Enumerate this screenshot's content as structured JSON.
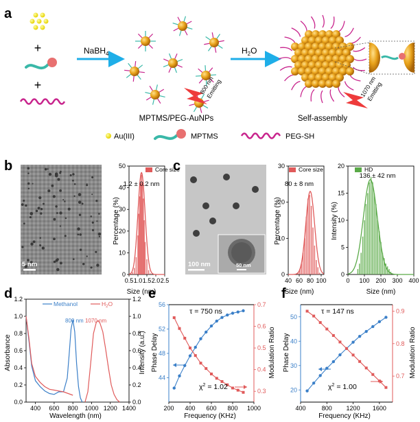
{
  "panels": {
    "a": {
      "label": "a",
      "reagent_label": "NaBH",
      "reagent_sub": "4",
      "water_label": "H",
      "water_sub": "2",
      "water_tail": "O",
      "np_caption": "MPTMS/PEG-AuNPs",
      "assembly_caption": "Self-assembly",
      "emit_800_line1": "800 nm",
      "emit_800_line2": "Emitting",
      "emit_1070_line1": "1070 nm",
      "emit_1070_line2": "Emitting",
      "plus": "+",
      "legend": [
        "Au(III)",
        "MPTMS",
        "PEG-SH"
      ]
    },
    "b": {
      "label": "b",
      "scale_bar": "5 nm",
      "hist": {
        "legend": "Core size",
        "annotation": "1.2 ± 0.2 nm",
        "xlabel": "Size (nm)",
        "ylabel": "Percentage (%)"
      }
    },
    "c": {
      "label": "c",
      "scale_bar": "100 nm",
      "inset_scale": "50 nm",
      "hist1": {
        "legend": "Core size",
        "annotation": "80 ± 8 nm",
        "xlabel": "Size (nm)",
        "ylabel": "Percentage (%)"
      },
      "hist2": {
        "legend": "HD",
        "annotation": "136 ± 42 nm",
        "xlabel": "Size (nm)",
        "ylabel": "Intensity (%)"
      }
    },
    "d": {
      "label": "d",
      "legend_methanol": "Methanol",
      "legend_water": "H",
      "legend_water_sub": "2",
      "legend_water_tail": "O",
      "peak1": "800 nm",
      "peak2": "1070 nm",
      "xlabel": "Wavelength (nm)",
      "ylabel_left": "Absorbance",
      "ylabel_right": "Intensity (a.u.)"
    },
    "e": {
      "label": "e",
      "tau": "τ = 750 ns",
      "chi": "χ",
      "chi_sup": "2",
      "chi_val": " = 1.02",
      "xlabel": "Frequency (KHz)",
      "ylabel_left": "Phase Delay",
      "ylabel_right": "Modulation Ratio"
    },
    "f": {
      "label": "f",
      "tau": "τ = 147 ns",
      "chi": "χ",
      "chi_sup": "2",
      "chi_val": " = 1.00",
      "xlabel": "Frequency (KHz)",
      "ylabel_left": "Phase Delay",
      "ylabel_right": "Modulation Ratio"
    }
  },
  "colors": {
    "red": "#e05a5a",
    "green": "#5aaa48",
    "blue": "#3a7fc8",
    "cyan_arrow": "#1eaee8",
    "gold": "#e8a21a",
    "magenta": "#c8238c",
    "teal": "#3ab8a8"
  },
  "chart_data": [
    {
      "id": "b-hist",
      "type": "bar",
      "x": [
        0.6,
        0.7,
        0.8,
        0.9,
        1.0,
        1.05,
        1.1,
        1.15,
        1.2,
        1.25,
        1.3,
        1.35,
        1.4,
        1.5,
        1.6,
        1.7
      ],
      "values": [
        0.3,
        1,
        3,
        8,
        18,
        28,
        36,
        42,
        46,
        42,
        35,
        25,
        15,
        7,
        2,
        0.5
      ],
      "fit": {
        "mu": 1.2,
        "sigma": 0.2,
        "peak": 47
      },
      "xticks": [
        0.5,
        1.0,
        1.5,
        2.0,
        2.5
      ],
      "xtick_labels": [
        "0.5",
        "1.0",
        "1.5",
        "2.0",
        "2.5"
      ],
      "yticks": [
        0,
        10,
        20,
        30,
        40,
        50
      ],
      "xlim": [
        0.5,
        2.5
      ],
      "ylim": [
        0,
        50
      ]
    },
    {
      "id": "c-hist1",
      "type": "bar",
      "x": [
        58,
        61,
        64,
        67,
        70,
        73,
        76,
        79,
        82,
        85,
        88,
        91,
        94,
        97
      ],
      "values": [
        0.5,
        1.5,
        3,
        6,
        10,
        16,
        21,
        22,
        19,
        13,
        8,
        4,
        2,
        0.5
      ],
      "fit": {
        "mu": 80,
        "sigma": 8,
        "peak": 23
      },
      "xticks": [
        40,
        60,
        80,
        100
      ],
      "xtick_labels": [
        "40",
        "60",
        "80",
        "100"
      ],
      "yticks": [
        0,
        10,
        20,
        30
      ],
      "xlim": [
        40,
        105
      ],
      "ylim": [
        0,
        30
      ]
    },
    {
      "id": "c-hist2",
      "type": "bar",
      "x": [
        60,
        70,
        80,
        90,
        100,
        110,
        120,
        130,
        140,
        150,
        160,
        170,
        180,
        190,
        200,
        210,
        220,
        230,
        240,
        250,
        260
      ],
      "values": [
        1,
        2,
        4,
        7,
        10,
        13,
        15,
        17,
        18,
        17,
        15,
        13,
        10,
        8,
        6,
        4,
        3,
        2,
        1.5,
        1,
        0.5
      ],
      "fit": {
        "mu": 136,
        "sigma": 42,
        "peak": 17.5
      },
      "xticks": [
        0,
        100,
        200,
        300,
        400
      ],
      "xtick_labels": [
        "0",
        "100",
        "200",
        "300",
        "400"
      ],
      "yticks": [
        0,
        5,
        10,
        15,
        20
      ],
      "xlim": [
        0,
        400
      ],
      "ylim": [
        0,
        20
      ]
    },
    {
      "id": "d-spectra",
      "type": "line",
      "xlim": [
        300,
        1400
      ],
      "ylim": [
        0,
        1.2
      ],
      "xticks": [
        400,
        600,
        800,
        1000,
        1200,
        1400
      ],
      "xtick_labels": [
        "400",
        "600",
        "800",
        "1000",
        "1200",
        "1400"
      ],
      "yticks": [
        0,
        0.2,
        0.4,
        0.6,
        0.8,
        1.0,
        1.2
      ],
      "series": [
        {
          "name": "Methanol",
          "axis": "left",
          "x": [
            300,
            330,
            360,
            400,
            450,
            500,
            550,
            600,
            650,
            700,
            740,
            760,
            780,
            800,
            820,
            840,
            860,
            880,
            900
          ],
          "y": [
            1.0,
            0.72,
            0.42,
            0.25,
            0.18,
            0.13,
            0.1,
            0.09,
            0.12,
            0.12,
            0.28,
            0.55,
            0.85,
            0.96,
            0.82,
            0.45,
            0.18,
            0.05,
            0.0
          ]
        },
        {
          "name": "H2O",
          "axis": "left",
          "x": [
            300,
            330,
            360,
            400,
            450,
            500,
            550,
            600,
            650,
            700,
            750,
            800
          ],
          "y": [
            1.0,
            0.75,
            0.45,
            0.3,
            0.23,
            0.18,
            0.15,
            0.14,
            0.13,
            0.12,
            0.1,
            0.08
          ]
        },
        {
          "name": "H2O emission",
          "axis": "right",
          "x": [
            930,
            960,
            990,
            1020,
            1050,
            1070,
            1090,
            1120,
            1150,
            1180,
            1210,
            1240,
            1270,
            1300
          ],
          "y": [
            0.0,
            0.12,
            0.45,
            0.8,
            0.93,
            0.95,
            0.92,
            0.82,
            0.62,
            0.4,
            0.2,
            0.09,
            0.03,
            0.0
          ]
        }
      ]
    },
    {
      "id": "e-lifetime",
      "type": "scatter",
      "xlim": [
        200,
        1000
      ],
      "xticks": [
        200,
        400,
        600,
        800,
        1000
      ],
      "xtick_labels": [
        "200",
        "400",
        "600",
        "800",
        "1000"
      ],
      "ylim_left": [
        40,
        56
      ],
      "yticks_left": [
        44,
        48,
        52,
        56
      ],
      "ylim_right": [
        0.25,
        0.7
      ],
      "yticks_right": [
        0.3,
        0.4,
        0.5,
        0.6,
        0.7
      ],
      "series": [
        {
          "name": "Phase Delay",
          "axis": "left",
          "x": [
            250,
            300,
            350,
            400,
            450,
            500,
            550,
            600,
            650,
            700,
            750,
            800,
            850,
            900
          ],
          "y": [
            42.3,
            44.3,
            46.0,
            47.6,
            49.0,
            50.4,
            51.5,
            52.5,
            53.3,
            53.9,
            54.3,
            54.6,
            54.8,
            55.0
          ]
        },
        {
          "name": "Modulation Ratio",
          "axis": "right",
          "x": [
            250,
            300,
            350,
            400,
            450,
            500,
            550,
            600,
            650,
            700,
            750,
            800,
            850,
            900
          ],
          "y": [
            0.64,
            0.59,
            0.545,
            0.5,
            0.465,
            0.43,
            0.405,
            0.38,
            0.36,
            0.345,
            0.33,
            0.315,
            0.305,
            0.295
          ]
        }
      ]
    },
    {
      "id": "f-lifetime",
      "type": "scatter",
      "xlim": [
        400,
        1800
      ],
      "xticks": [
        400,
        800,
        1200,
        1600
      ],
      "xtick_labels": [
        "400",
        "800",
        "1200",
        "1600"
      ],
      "ylim_left": [
        15,
        55
      ],
      "yticks_left": [
        20,
        30,
        40,
        50
      ],
      "ylim_right": [
        0.62,
        0.92
      ],
      "yticks_right": [
        0.7,
        0.8,
        0.9
      ],
      "series": [
        {
          "name": "Phase Delay",
          "axis": "left",
          "x": [
            500,
            600,
            700,
            800,
            900,
            1000,
            1100,
            1200,
            1300,
            1400,
            1500,
            1600,
            1700
          ],
          "y": [
            19.6,
            22.8,
            25.9,
            28.9,
            31.6,
            34.4,
            37.0,
            39.6,
            42.0,
            44.0,
            46.0,
            48.0,
            49.8
          ]
        },
        {
          "name": "Modulation Ratio",
          "axis": "right",
          "x": [
            500,
            600,
            700,
            800,
            900,
            1000,
            1100,
            1200,
            1300,
            1400,
            1500,
            1600,
            1700
          ],
          "y": [
            0.9,
            0.885,
            0.865,
            0.845,
            0.825,
            0.805,
            0.785,
            0.765,
            0.745,
            0.725,
            0.705,
            0.685,
            0.665
          ]
        }
      ]
    }
  ]
}
